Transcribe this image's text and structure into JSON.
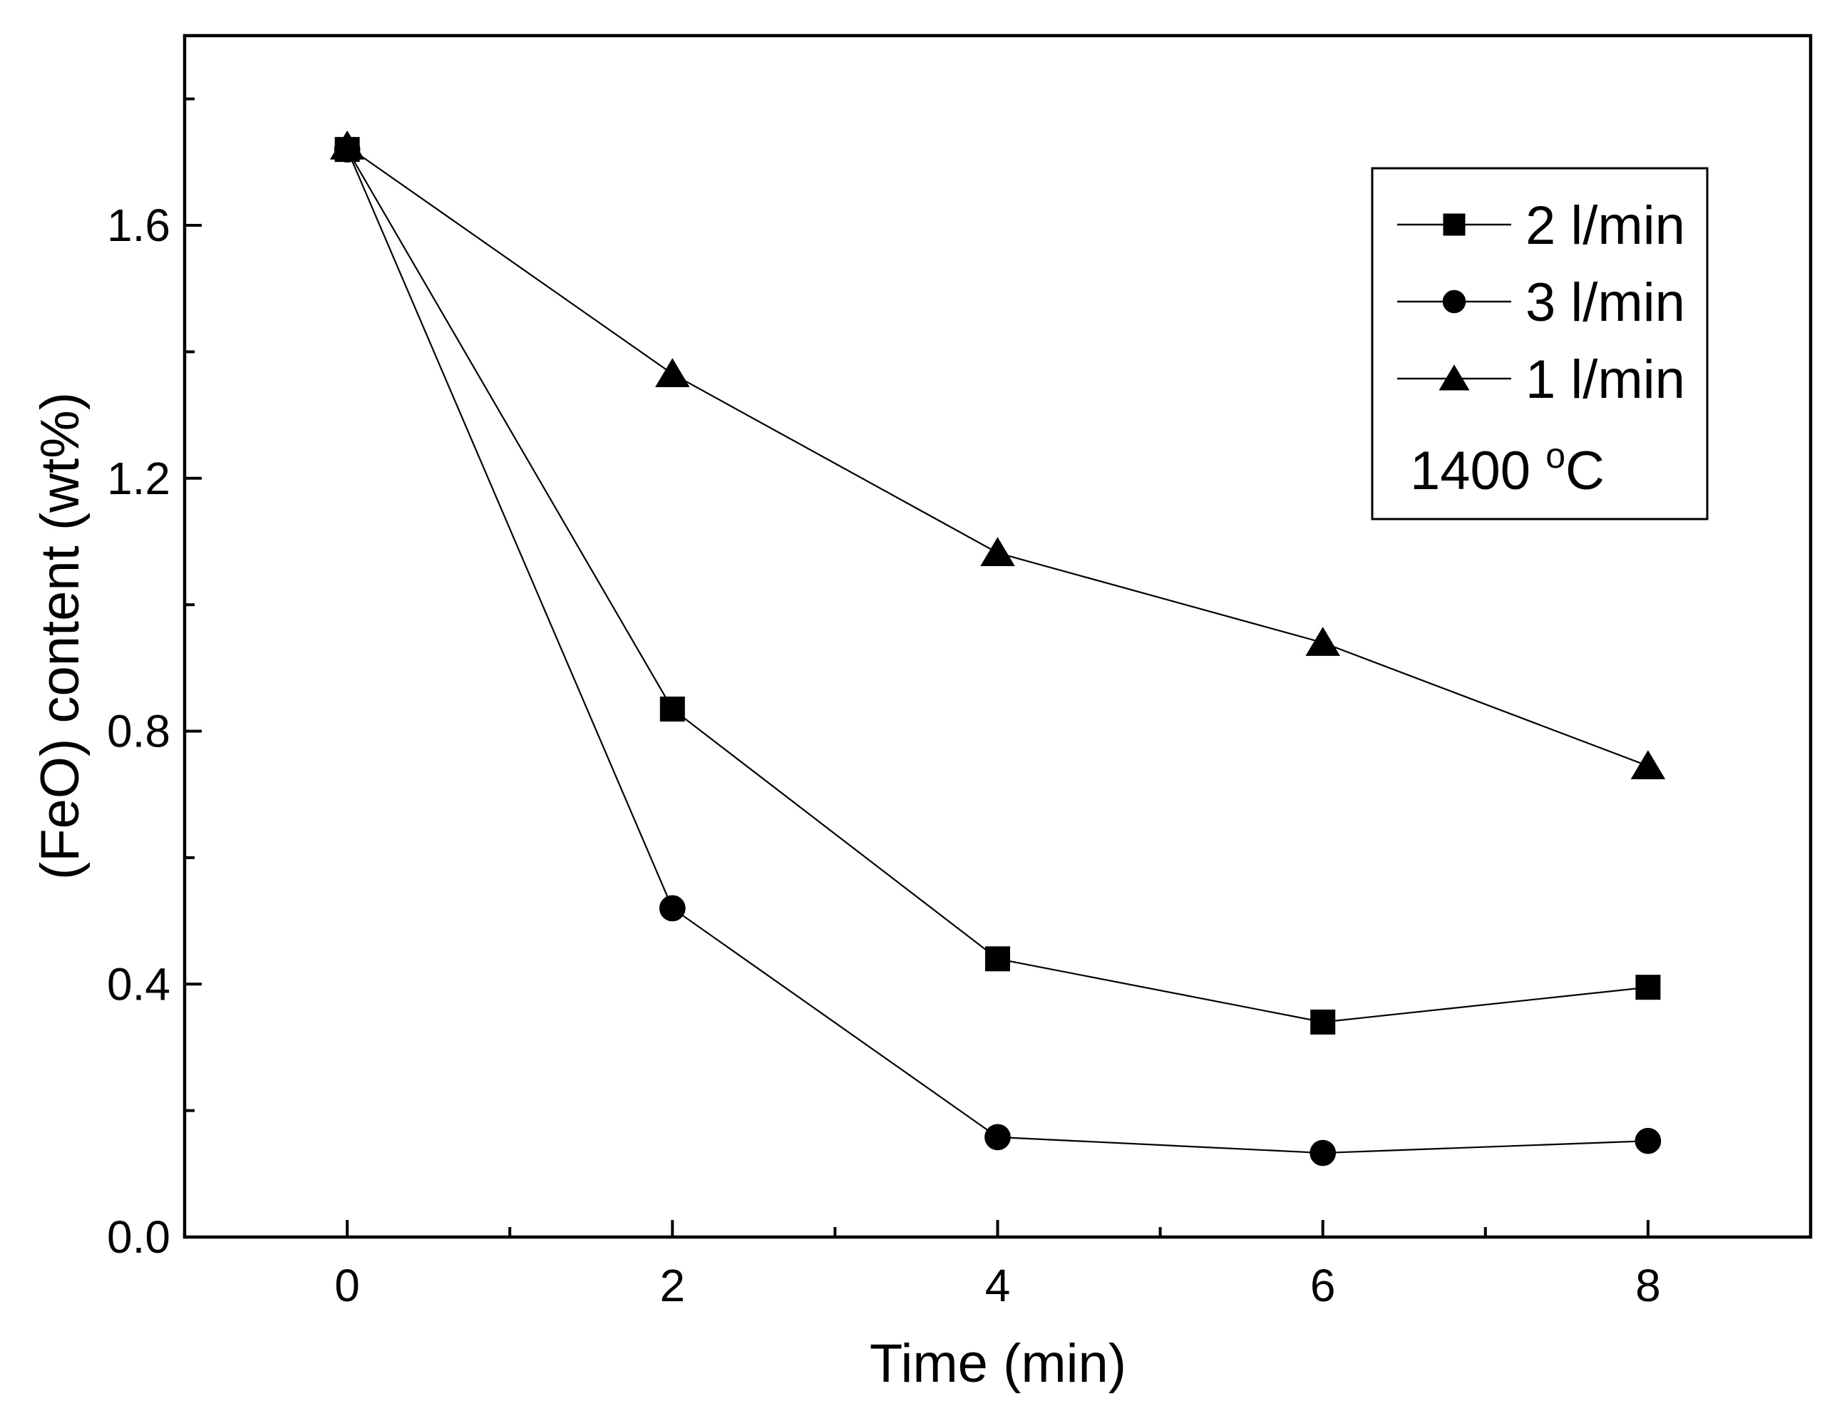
{
  "chart_data": {
    "type": "line",
    "title": "",
    "xlabel": "Time (min)",
    "ylabel": "(FeO) content  (wt%)",
    "xlim": [
      -1,
      9
    ],
    "ylim": [
      0,
      1.9
    ],
    "xticks": [
      0,
      2,
      4,
      6,
      8
    ],
    "xtick_labels": [
      "0",
      "2",
      "4",
      "6",
      "8"
    ],
    "xminor_ticks": [
      1,
      3,
      5,
      7
    ],
    "yticks": [
      0,
      0.4,
      0.8,
      1.2,
      1.6
    ],
    "ytick_labels": [
      "0.0",
      "0.4",
      "0.8",
      "1.2",
      "1.6"
    ],
    "yminor_ticks": [
      0.2,
      0.6,
      1.0,
      1.4,
      1.8
    ],
    "grid": false,
    "legend_position": "top-right",
    "annotation": {
      "main": "1400 ",
      "superscript": "o",
      "unit": "C"
    },
    "x": [
      0,
      2,
      4,
      6,
      8
    ],
    "series": [
      {
        "name": "2 l/min",
        "marker": "square",
        "values": [
          1.72,
          0.835,
          0.44,
          0.34,
          0.395
        ]
      },
      {
        "name": "3 l/min",
        "marker": "circle",
        "values": [
          1.72,
          0.52,
          0.158,
          0.133,
          0.152
        ]
      },
      {
        "name": "1 l/min",
        "marker": "triangle",
        "values": [
          1.725,
          1.365,
          1.082,
          0.94,
          0.745
        ]
      }
    ]
  }
}
